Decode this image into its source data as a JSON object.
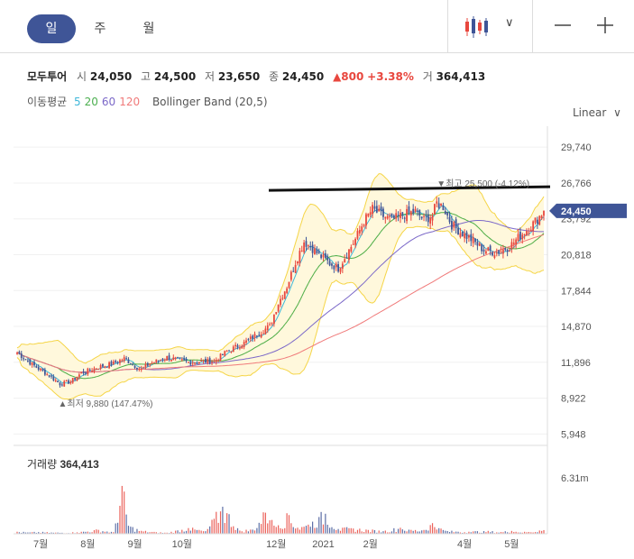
{
  "toolbar": {
    "tabs": [
      {
        "label": "일"
      },
      {
        "label": "주"
      },
      {
        "label": "월"
      }
    ],
    "active_tab": 0
  },
  "quote": {
    "name": "모두투어",
    "open_label": "시",
    "open": "24,050",
    "high_label": "고",
    "high": "24,500",
    "low_label": "저",
    "low": "23,650",
    "close_label": "종",
    "close": "24,450",
    "change": "▲800",
    "change_pct": "+3.38%",
    "volume_label": "거",
    "volume": "364,413"
  },
  "indicators": {
    "ma_label": "이동평균",
    "ma_periods": [
      {
        "label": "5",
        "color": "#3fb7d9"
      },
      {
        "label": "20",
        "color": "#4caf50"
      },
      {
        "label": "60",
        "color": "#7b68c8"
      },
      {
        "label": "120",
        "color": "#f07a7a"
      }
    ],
    "bollinger_label": "Bollinger Band (20,5)"
  },
  "scale_label": "Linear",
  "colors": {
    "up": "#e8473e",
    "down": "#3f5597",
    "band_fill": "#fff8dc",
    "band_line": "#f5d547",
    "accent": "#3f5597"
  },
  "chart_data": {
    "type": "candlestick",
    "price_axis": {
      "ticks": [
        29740,
        26766,
        23792,
        20818,
        17844,
        14870,
        11896,
        8922,
        5948
      ],
      "tick_labels": [
        "29,740",
        "26,766",
        "23,792",
        "20,818",
        "17,844",
        "14,870",
        "11,896",
        "8,922",
        "5,948"
      ],
      "range": [
        5300,
        31100
      ]
    },
    "current_price": 24450,
    "current_price_label": "24,450",
    "x_axis": {
      "labels": [
        "7월",
        "8월",
        "9월",
        "10월",
        "12월",
        "2021",
        "2월",
        "4월",
        "5월"
      ],
      "label_index": [
        11,
        33,
        55,
        77,
        121,
        143,
        165,
        209,
        231
      ]
    },
    "annotations": {
      "high": {
        "text": "▼최고 25,500 (-4.12%)",
        "value": 25500,
        "index": 196
      },
      "low": {
        "text": "▲최저 9,880 (147.47%)",
        "value": 9880,
        "index": 20
      }
    },
    "resistance_line": {
      "value": 26300
    },
    "volume": {
      "title": "거래량",
      "latest": "364,413",
      "axis_label": "6.31m",
      "max": 6310000
    },
    "anchors": [
      [
        0,
        12700
      ],
      [
        8,
        11600
      ],
      [
        15,
        10800
      ],
      [
        20,
        10100
      ],
      [
        25,
        10300
      ],
      [
        30,
        11000
      ],
      [
        38,
        11500
      ],
      [
        45,
        11800
      ],
      [
        50,
        12200
      ],
      [
        55,
        11600
      ],
      [
        58,
        11300
      ],
      [
        62,
        11800
      ],
      [
        70,
        12300
      ],
      [
        80,
        11900
      ],
      [
        92,
        12000
      ],
      [
        98,
        12800
      ],
      [
        106,
        13500
      ],
      [
        112,
        14200
      ],
      [
        118,
        14900
      ],
      [
        122,
        16800
      ],
      [
        126,
        18200
      ],
      [
        130,
        20200
      ],
      [
        134,
        21900
      ],
      [
        137,
        21500
      ],
      [
        141,
        20800
      ],
      [
        146,
        20100
      ],
      [
        150,
        19700
      ],
      [
        154,
        20900
      ],
      [
        158,
        22100
      ],
      [
        162,
        23600
      ],
      [
        166,
        24600
      ],
      [
        170,
        24100
      ],
      [
        175,
        23700
      ],
      [
        180,
        24100
      ],
      [
        186,
        24400
      ],
      [
        190,
        23700
      ],
      [
        194,
        24100
      ],
      [
        196,
        25100
      ],
      [
        199,
        24800
      ],
      [
        203,
        23300
      ],
      [
        207,
        22700
      ],
      [
        212,
        22100
      ],
      [
        218,
        21200
      ],
      [
        224,
        21000
      ],
      [
        230,
        21500
      ],
      [
        235,
        22400
      ],
      [
        240,
        23200
      ],
      [
        244,
        24000
      ],
      [
        246,
        24450
      ]
    ],
    "volume_bars": [
      [
        0,
        230000
      ],
      [
        5,
        150000
      ],
      [
        10,
        190000
      ],
      [
        18,
        130000
      ],
      [
        28,
        160000
      ],
      [
        38,
        440000
      ],
      [
        45,
        180000
      ],
      [
        49,
        5400000
      ],
      [
        52,
        900000
      ],
      [
        58,
        330000
      ],
      [
        65,
        180000
      ],
      [
        70,
        120000
      ],
      [
        80,
        640000
      ],
      [
        88,
        290000
      ],
      [
        96,
        3050000
      ],
      [
        104,
        360000
      ],
      [
        110,
        470000
      ],
      [
        116,
        2380000
      ],
      [
        118,
        1520000
      ],
      [
        122,
        960000
      ],
      [
        127,
        2110000
      ],
      [
        131,
        680000
      ],
      [
        136,
        1030000
      ],
      [
        141,
        1890000
      ],
      [
        144,
        2260000
      ],
      [
        150,
        540000
      ],
      [
        156,
        630000
      ],
      [
        164,
        430000
      ],
      [
        171,
        290000
      ],
      [
        179,
        680000
      ],
      [
        183,
        460000
      ],
      [
        189,
        380000
      ],
      [
        194,
        1200000
      ],
      [
        197,
        630000
      ],
      [
        200,
        340000
      ],
      [
        206,
        230000
      ],
      [
        211,
        230000
      ],
      [
        218,
        300000
      ],
      [
        226,
        200000
      ],
      [
        231,
        320000
      ],
      [
        238,
        170000
      ],
      [
        244,
        370000
      ]
    ]
  }
}
